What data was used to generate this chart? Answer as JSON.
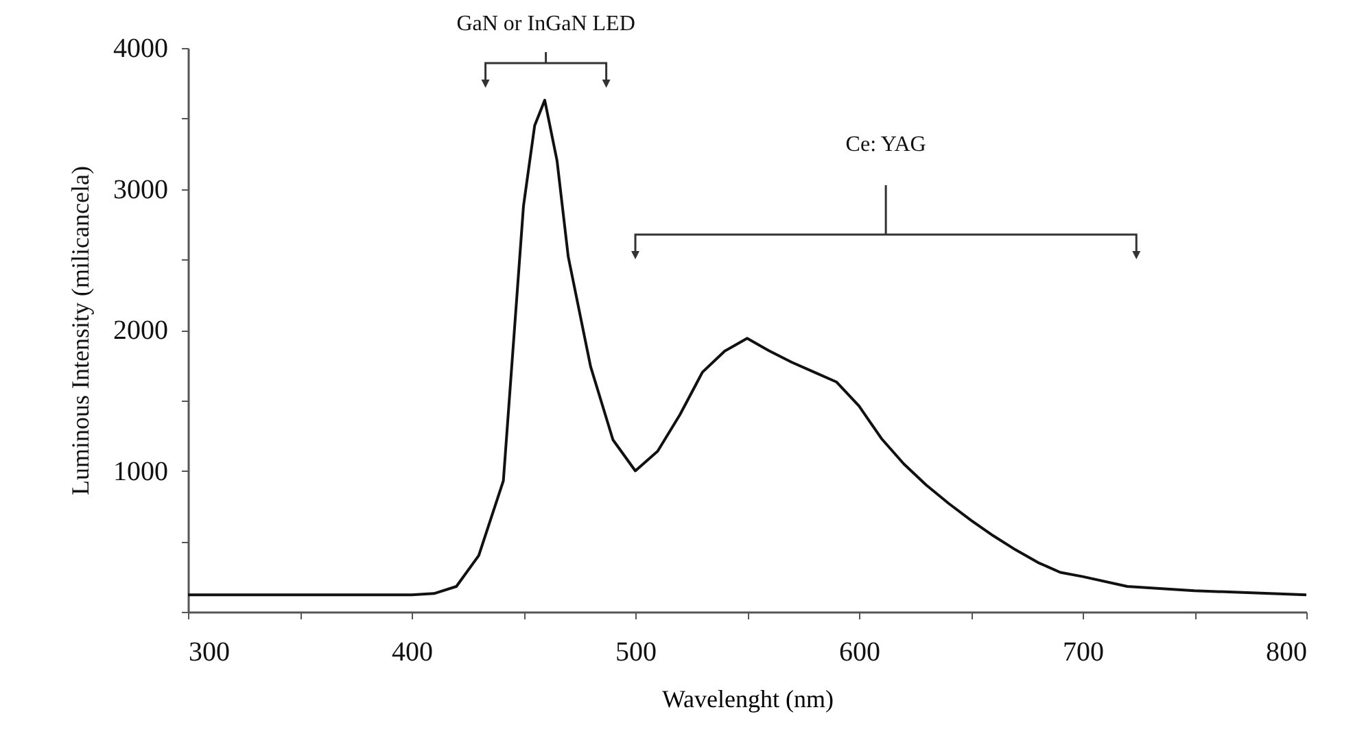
{
  "chart_data": {
    "type": "line",
    "xlabel": "Wavelenght (nm)",
    "ylabel": "Luminous Intensity (milicancela)",
    "annotations": [
      "GaN or InGaN LED",
      "Ce: YAG"
    ],
    "xlim": [
      300,
      800
    ],
    "ylim": [
      0,
      4000
    ],
    "xticks": [
      300,
      {
        "value": 350,
        "label": null
      },
      400,
      {
        "value": 450,
        "label": null
      },
      500,
      {
        "value": 550,
        "label": null
      },
      600,
      {
        "value": 650,
        "label": null
      },
      700,
      {
        "value": 750,
        "label": null
      },
      800
    ],
    "yticks": [
      {
        "value": 0,
        "label": null
      },
      {
        "value": 500,
        "label": null
      },
      1000,
      {
        "value": 1500,
        "label": null
      },
      2000,
      {
        "value": 2500,
        "label": null
      },
      3000,
      {
        "value": 3500,
        "label": null
      },
      4000
    ],
    "grid": false,
    "marker": "none",
    "line_style": "solid",
    "x": [
      300,
      350,
      400,
      410,
      420,
      430,
      441,
      450,
      455,
      459.5,
      465,
      470,
      480,
      490,
      500,
      510,
      520,
      530,
      540,
      550,
      560,
      570,
      580,
      590,
      600,
      610,
      620,
      630,
      640,
      650,
      660,
      670,
      680,
      690,
      700,
      720,
      750,
      800
    ],
    "series": [
      {
        "color": "#111111",
        "values": [
          120,
          120,
          120,
          130,
          180,
          400,
          930,
          2880,
          3450,
          3630,
          3200,
          2520,
          1740,
          1220,
          1000,
          1140,
          1400,
          1700,
          1850,
          1940,
          1850,
          1770,
          1700,
          1630,
          1460,
          1230,
          1050,
          900,
          770,
          650,
          540,
          440,
          350,
          280,
          250,
          180,
          150,
          120
        ]
      }
    ]
  }
}
